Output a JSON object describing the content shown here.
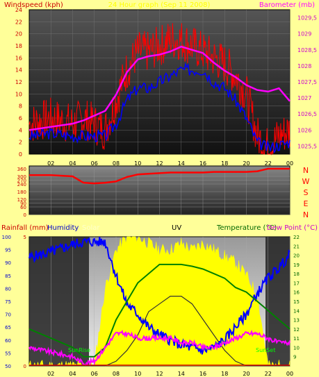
{
  "header": {
    "windspeed_label": "Windspeed (kph)",
    "title": "24 Hour graph (Sep 11 2008)",
    "barometer_label": "Barometer (mb)"
  },
  "legend_bottom": {
    "rainfall": "Rainfall (mm)",
    "humidity": "Humidity",
    "solar": "Solar",
    "uv": "UV",
    "temperature": "Temperature (°C)",
    "dewpoint": "Dew Point (°C)"
  },
  "compass": [
    "N",
    "W",
    "S",
    "E",
    "N"
  ],
  "annotations": {
    "sunrise": "SunRise",
    "sunset": "SunSet"
  },
  "colors": {
    "background": "#ffff99",
    "wind_speed": "#ff0000",
    "wind_avg": "#0000ff",
    "barometer": "#ff00ff",
    "wind_dir": "#ff0000",
    "solar": "#ffff00",
    "humidity": "#0000ff",
    "temperature": "#008000",
    "dewpoint": "#ff00ff",
    "uv": "#333333"
  },
  "chart_data": [
    {
      "type": "line",
      "name": "wind-barometer",
      "x_ticks": [
        "02",
        "04",
        "06",
        "08",
        "10",
        "12",
        "14",
        "16",
        "18",
        "20",
        "22",
        "00"
      ],
      "y_left": {
        "label": "Windspeed (kph)",
        "range": [
          0,
          24
        ],
        "ticks": [
          0,
          2,
          4,
          6,
          8,
          10,
          12,
          14,
          16,
          18,
          20,
          22,
          24
        ]
      },
      "y_right": {
        "label": "Barometer (mb)",
        "range": [
          1025.25,
          1029.75
        ],
        "ticks": [
          "1025,5",
          "1026",
          "1026,5",
          "1027",
          "1027,5",
          "1028",
          "1028,5",
          "1029",
          "1029,5"
        ]
      },
      "x_hours": [
        0,
        2,
        4,
        5,
        6,
        7,
        8,
        9,
        10,
        11,
        12,
        13,
        14,
        15,
        16,
        17,
        18,
        19,
        20,
        21,
        22,
        23,
        24
      ],
      "series": [
        {
          "name": "Windspeed (kph)",
          "axis": "left",
          "values": [
            5,
            6,
            5,
            6,
            5,
            4,
            9,
            14,
            17,
            17,
            18,
            19,
            19,
            18,
            17,
            16,
            15,
            13,
            10,
            3,
            1,
            3,
            4
          ]
        },
        {
          "name": "Average",
          "axis": "left",
          "values": [
            3,
            3.5,
            3,
            3,
            3,
            3,
            5,
            9,
            11,
            11,
            12,
            13,
            14,
            14,
            14,
            12,
            11,
            9,
            6,
            2,
            1,
            1.5,
            2
          ]
        },
        {
          "name": "Barometer (mb)",
          "axis": "right",
          "values": [
            1026.0,
            1026.1,
            1026.2,
            1026.3,
            1026.45,
            1026.6,
            1027.1,
            1027.8,
            1028.2,
            1028.3,
            1028.35,
            1028.45,
            1028.6,
            1028.5,
            1028.4,
            1028.1,
            1027.85,
            1027.65,
            1027.4,
            1027.25,
            1027.2,
            1027.3,
            1026.9
          ]
        }
      ]
    },
    {
      "type": "line",
      "name": "wind-direction",
      "y_range": [
        0,
        360
      ],
      "y_ticks": [
        0,
        60,
        90,
        120,
        180,
        240,
        270,
        300,
        360
      ],
      "compass": [
        "N",
        "W",
        "S",
        "E",
        "N"
      ],
      "x_hours": [
        0,
        2,
        4,
        5,
        6,
        7,
        8,
        9,
        10,
        11,
        12,
        13,
        14,
        15,
        16,
        17,
        18,
        19,
        20,
        21,
        22,
        23,
        24
      ],
      "series": [
        {
          "name": "Direction",
          "values": [
            310,
            310,
            300,
            250,
            245,
            250,
            260,
            295,
            315,
            320,
            325,
            330,
            330,
            330,
            330,
            335,
            335,
            335,
            335,
            340,
            360,
            360,
            360
          ]
        }
      ]
    },
    {
      "type": "line",
      "name": "temp-humidity-solar",
      "x_ticks": [
        "02",
        "04",
        "06",
        "08",
        "10",
        "12",
        "14",
        "16",
        "18",
        "20",
        "22",
        "00"
      ],
      "y_left_humidity": {
        "range": [
          50,
          100
        ],
        "ticks": [
          50,
          55,
          60,
          65,
          70,
          75,
          80,
          85,
          90,
          95,
          100
        ]
      },
      "y_left_rain": {
        "range": [
          0,
          5
        ],
        "ticks": [
          0,
          5
        ]
      },
      "y_right_temp": {
        "range": [
          8,
          22
        ],
        "ticks": [
          9,
          10,
          11,
          12,
          13,
          14,
          15,
          16,
          17,
          18,
          19,
          20,
          21,
          22
        ]
      },
      "x_hours": [
        0,
        2,
        4,
        5,
        6,
        7,
        8,
        9,
        10,
        11,
        12,
        13,
        14,
        15,
        16,
        17,
        18,
        19,
        20,
        21,
        22,
        23,
        24
      ],
      "series": [
        {
          "name": "Humidity",
          "values": [
            92,
            94,
            97,
            98,
            98,
            98,
            85,
            74,
            70,
            65,
            62,
            60,
            58,
            57,
            56,
            57,
            60,
            65,
            70,
            78,
            84,
            88,
            93
          ]
        },
        {
          "name": "Temperature (°C)",
          "values": [
            12,
            11,
            10,
            9,
            9,
            10,
            13,
            15,
            17,
            18,
            19,
            19,
            19,
            18.8,
            18.5,
            18,
            17.5,
            16.5,
            16,
            15,
            14,
            13,
            12
          ]
        },
        {
          "name": "Dew Point (°C)",
          "values": [
            10,
            9.5,
            9,
            8.3,
            8.5,
            10,
            11.5,
            11.5,
            11,
            11,
            11,
            11,
            10.5,
            10.5,
            10,
            10,
            10.5,
            11,
            11.5,
            11.5,
            11,
            10.5,
            10.5
          ]
        },
        {
          "name": "UV",
          "values": [
            0,
            0,
            0,
            0,
            0,
            0,
            0.3,
            1,
            2,
            3.5,
            4,
            4.5,
            4.5,
            4,
            3,
            2,
            1,
            0.3,
            0,
            0,
            0,
            0,
            0
          ]
        },
        {
          "name": "Solar",
          "values": [
            0,
            0,
            0,
            0,
            0,
            0.6,
            0.9,
            1,
            1,
            0.95,
            0.9,
            0.9,
            0.95,
            0.9,
            0.95,
            0.9,
            0.85,
            0.8,
            0.7,
            0.55,
            0,
            0,
            0
          ]
        }
      ],
      "sunrise_hour": 5,
      "sunset_hour": 22
    }
  ]
}
